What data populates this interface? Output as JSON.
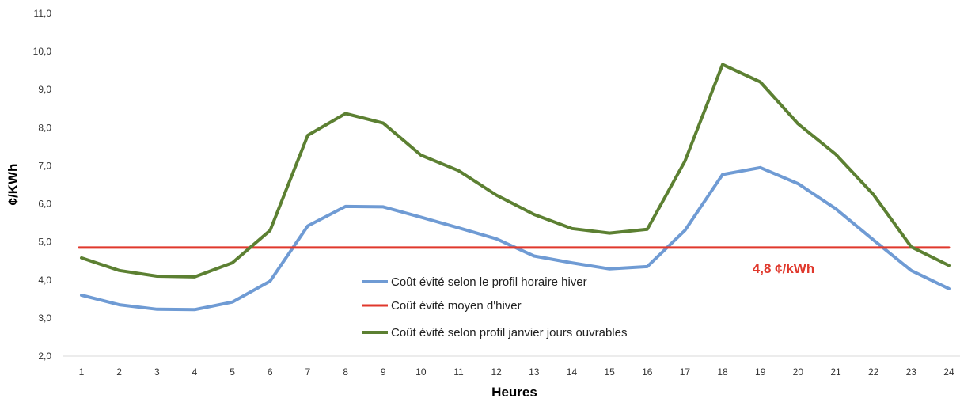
{
  "chart_data": {
    "type": "line",
    "title": "",
    "xlabel": "Heures",
    "ylabel": "¢/KWh",
    "x": [
      1,
      2,
      3,
      4,
      5,
      6,
      7,
      8,
      9,
      10,
      11,
      12,
      13,
      14,
      15,
      16,
      17,
      18,
      19,
      20,
      21,
      22,
      23,
      24
    ],
    "x_ticks": [
      "1",
      "2",
      "3",
      "4",
      "5",
      "6",
      "7",
      "8",
      "9",
      "10",
      "11",
      "12",
      "13",
      "14",
      "15",
      "16",
      "17",
      "18",
      "19",
      "20",
      "21",
      "22",
      "23",
      "24"
    ],
    "ylim": [
      2.0,
      11.0
    ],
    "y_ticks": [
      "2,0",
      "3,0",
      "4,0",
      "5,0",
      "6,0",
      "7,0",
      "8,0",
      "9,0",
      "10,0",
      "11,0"
    ],
    "grid": false,
    "legend_position": "center",
    "series": [
      {
        "name": "Coût évité selon le profil horaire hiver",
        "color": "#6F9BD4",
        "values": [
          3.6,
          3.35,
          3.23,
          3.22,
          3.42,
          3.97,
          5.42,
          5.93,
          5.92,
          5.65,
          5.37,
          5.08,
          4.63,
          4.45,
          4.29,
          4.35,
          5.3,
          6.77,
          6.95,
          6.53,
          5.87,
          5.05,
          4.25,
          3.77
        ]
      },
      {
        "name": "Coût évité moyen d'hiver",
        "color": "#E0382C",
        "values": [
          4.85,
          4.85,
          4.85,
          4.85,
          4.85,
          4.85,
          4.85,
          4.85,
          4.85,
          4.85,
          4.85,
          4.85,
          4.85,
          4.85,
          4.85,
          4.85,
          4.85,
          4.85,
          4.85,
          4.85,
          4.85,
          4.85,
          4.85,
          4.85
        ]
      },
      {
        "name": "Coût évité selon profil janvier jours ouvrables",
        "color": "#5C8032",
        "values": [
          4.58,
          4.25,
          4.1,
          4.08,
          4.45,
          5.3,
          7.8,
          8.37,
          8.12,
          7.28,
          6.87,
          6.23,
          5.72,
          5.35,
          5.23,
          5.33,
          7.12,
          9.66,
          9.2,
          8.1,
          7.3,
          6.24,
          4.87,
          4.38
        ]
      }
    ],
    "annotations": [
      {
        "text": "4,8 ¢/kWh",
        "x": 19.7,
        "y": 4.5,
        "color": "#E0382C"
      }
    ]
  }
}
